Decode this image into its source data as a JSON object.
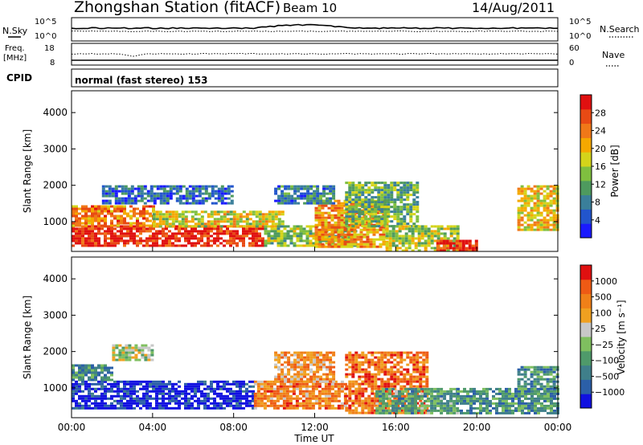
{
  "header": {
    "station": "Zhongshan Station (fitACF)",
    "beam": "Beam 10",
    "date": "14/Aug/2011"
  },
  "top_panels": {
    "nsky_label": "N.Sky",
    "nsky_ticks": [
      "10^5",
      "10^0"
    ],
    "nsearch_label": "N.Search",
    "nsearch_ticks": [
      "10^5",
      "10^0"
    ],
    "freq_label": "Freq.",
    "freq_unit": "[MHz]",
    "freq_ticks": [
      "18",
      "8"
    ],
    "nave_label": "Nave",
    "nave_ticks": [
      "60",
      "0"
    ],
    "cpid_label": "CPID",
    "cpid_text": "normal (fast stereo) 153"
  },
  "chart_data": [
    {
      "type": "heatmap",
      "title": "",
      "xlabel": "",
      "ylabel": "Slant Range [km]",
      "xlim": [
        0,
        24
      ],
      "ylim": [
        180,
        4600
      ],
      "x_ticks": [
        "00:00",
        "04:00",
        "08:00",
        "12:00",
        "16:00",
        "20:00",
        "00:00"
      ],
      "y_ticks": [
        "1000",
        "2000",
        "3000",
        "4000"
      ],
      "y_tick_values": [
        1000,
        2000,
        3000,
        4000
      ],
      "colorbar": {
        "label": "Power [dB]",
        "ticks": [
          "4",
          "8",
          "12",
          "16",
          "20",
          "24",
          "28"
        ],
        "colors": [
          "#1a1aff",
          "#2255cc",
          "#3a7f9a",
          "#4e9a5e",
          "#7fbf3f",
          "#d4d41a",
          "#f5a800",
          "#f07818",
          "#e84a14",
          "#e01010"
        ]
      },
      "regions": [
        {
          "t0": 0.0,
          "t1": 9.5,
          "r0": 350,
          "r1": 900,
          "level": 0.92
        },
        {
          "t0": 0.0,
          "t1": 4.0,
          "r0": 900,
          "r1": 1450,
          "level": 0.75
        },
        {
          "t0": 4.0,
          "t1": 10.5,
          "r0": 900,
          "r1": 1300,
          "level": 0.55
        },
        {
          "t0": 9.5,
          "t1": 14.0,
          "r0": 350,
          "r1": 900,
          "level": 0.45
        },
        {
          "t0": 12.0,
          "t1": 15.5,
          "r0": 300,
          "r1": 1600,
          "level": 0.7
        },
        {
          "t0": 13.5,
          "t1": 17.0,
          "r0": 900,
          "r1": 2100,
          "level": 0.4
        },
        {
          "t0": 15.5,
          "t1": 19.0,
          "r0": 200,
          "r1": 900,
          "level": 0.5
        },
        {
          "t0": 18.0,
          "t1": 20.0,
          "r0": 200,
          "r1": 500,
          "level": 0.9
        },
        {
          "t0": 22.0,
          "t1": 24.0,
          "r0": 800,
          "r1": 2000,
          "level": 0.6
        },
        {
          "t0": 1.5,
          "t1": 8.0,
          "r0": 1500,
          "r1": 2000,
          "level": 0.2
        },
        {
          "t0": 10.0,
          "t1": 13.0,
          "r0": 1500,
          "r1": 2000,
          "level": 0.25
        }
      ]
    },
    {
      "type": "heatmap",
      "title": "",
      "xlabel": "Time UT",
      "ylabel": "Slant Range [km]",
      "xlim": [
        0,
        24
      ],
      "ylim": [
        180,
        4600
      ],
      "x_ticks": [
        "00:00",
        "04:00",
        "08:00",
        "12:00",
        "16:00",
        "20:00",
        "00:00"
      ],
      "y_ticks": [
        "1000",
        "2000",
        "3000",
        "4000"
      ],
      "y_tick_values": [
        1000,
        2000,
        3000,
        4000
      ],
      "colorbar": {
        "label": "Velocity [m s⁻¹]",
        "ticks": [
          "1000",
          "500",
          "100",
          "25",
          "−25",
          "−100",
          "−500",
          "−1000"
        ],
        "colors": [
          "#1010e0",
          "#2b5fa8",
          "#3f7f8a",
          "#4f9a6a",
          "#7fbf5f",
          "#c8c8c8",
          "#f0a020",
          "#f08018",
          "#ee5a14",
          "#e01010"
        ]
      },
      "regions": [
        {
          "t0": 0.0,
          "t1": 9.0,
          "r0": 450,
          "r1": 1200,
          "level": 0.05
        },
        {
          "t0": 0.0,
          "t1": 2.0,
          "r0": 1200,
          "r1": 1650,
          "level": 0.3
        },
        {
          "t0": 9.0,
          "t1": 13.5,
          "r0": 450,
          "r1": 1200,
          "level": 0.75
        },
        {
          "t0": 10.0,
          "t1": 13.0,
          "r0": 1200,
          "r1": 2000,
          "level": 0.7
        },
        {
          "t0": 13.5,
          "t1": 17.5,
          "r0": 300,
          "r1": 2000,
          "level": 0.8
        },
        {
          "t0": 15.0,
          "t1": 19.0,
          "r0": 300,
          "r1": 1000,
          "level": 0.35
        },
        {
          "t0": 19.0,
          "t1": 24.0,
          "r0": 300,
          "r1": 1000,
          "level": 0.3
        },
        {
          "t0": 22.0,
          "t1": 24.0,
          "r0": 1000,
          "r1": 1600,
          "level": 0.3
        },
        {
          "t0": 2.0,
          "t1": 4.0,
          "r0": 1800,
          "r1": 2200,
          "level": 0.5
        }
      ]
    }
  ]
}
